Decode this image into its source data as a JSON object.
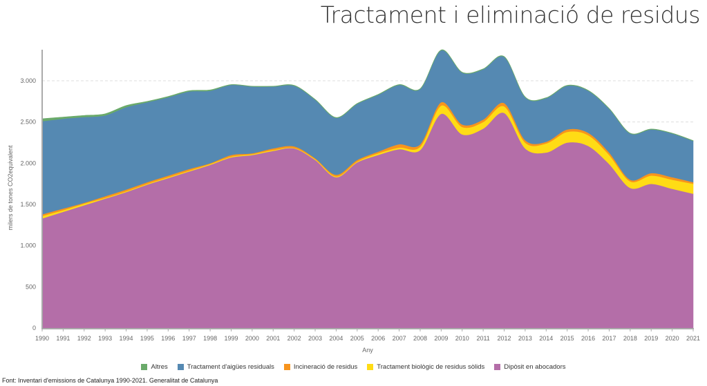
{
  "chart_data": {
    "type": "area",
    "stacked": true,
    "title": "Tractament i eliminació de residus",
    "xlabel": "Any",
    "ylabel": "milers de tones CO2equivalent",
    "ylim": [
      0,
      3400
    ],
    "yticks": [
      0,
      500,
      1000,
      1500,
      2000,
      2500,
      3000
    ],
    "ytick_labels": [
      "0",
      "500",
      "1.000",
      "1.500",
      "2.000",
      "2.500",
      "3.000"
    ],
    "categories": [
      "1990",
      "1991",
      "1992",
      "1993",
      "1994",
      "1995",
      "1996",
      "1997",
      "1998",
      "1999",
      "2000",
      "2001",
      "2002",
      "2003",
      "2004",
      "2005",
      "2006",
      "2007",
      "2008",
      "2009",
      "2010",
      "2011",
      "2012",
      "2013",
      "2014",
      "2015",
      "2016",
      "2017",
      "2018",
      "2019",
      "2020",
      "2021"
    ],
    "series": [
      {
        "name": "Dipòsit en abocadors",
        "color": "#b46ea8",
        "values": [
          1330,
          1410,
          1490,
          1570,
          1650,
          1740,
          1820,
          1900,
          1980,
          2070,
          2100,
          2150,
          2180,
          2040,
          1830,
          2010,
          2100,
          2170,
          2160,
          2600,
          2350,
          2420,
          2610,
          2180,
          2130,
          2250,
          2210,
          1990,
          1700,
          1750,
          1690,
          1630
        ]
      },
      {
        "name": "Tractament biològic de residus sòlids",
        "color": "#ffdc15",
        "values": [
          30,
          20,
          20,
          10,
          10,
          10,
          10,
          10,
          10,
          10,
          10,
          10,
          5,
          10,
          10,
          10,
          20,
          20,
          40,
          100,
          90,
          80,
          80,
          70,
          110,
          130,
          130,
          110,
          80,
          100,
          110,
          120
        ]
      },
      {
        "name": "Incineració de residus",
        "color": "#f7941d",
        "values": [
          20,
          20,
          10,
          20,
          20,
          20,
          20,
          20,
          10,
          20,
          10,
          20,
          20,
          10,
          20,
          20,
          20,
          40,
          30,
          40,
          30,
          30,
          40,
          30,
          20,
          30,
          30,
          30,
          20,
          30,
          30,
          20
        ]
      },
      {
        "name": "Tractament d'aigües residuals",
        "color": "#5589b2",
        "values": [
          1130,
          1090,
          1040,
          980,
          1000,
          970,
          950,
          940,
          880,
          850,
          810,
          750,
          735,
          710,
          690,
          680,
          690,
          720,
          670,
          630,
          630,
          610,
          560,
          520,
          530,
          530,
          510,
          530,
          560,
          530,
          530,
          500
        ]
      },
      {
        "name": "Altres",
        "color": "#6aaa6a",
        "values": [
          30,
          20,
          20,
          20,
          20,
          10,
          10,
          10,
          10,
          5,
          5,
          5,
          5,
          5,
          5,
          5,
          5,
          5,
          5,
          5,
          5,
          5,
          5,
          5,
          5,
          5,
          5,
          5,
          5,
          5,
          5,
          5
        ]
      }
    ],
    "legend_position": "bottom",
    "legend_order": [
      "Altres",
      "Tractament d'aigües residuals",
      "Incineració de residus",
      "Tractament biològic de residus sòlids",
      "Dipòsit en abocadors"
    ],
    "grid": "dashed horizontal"
  },
  "source": "Font: Inventari d'emissions de Catalunya 1990-2021. Generalitat de Catalunya"
}
